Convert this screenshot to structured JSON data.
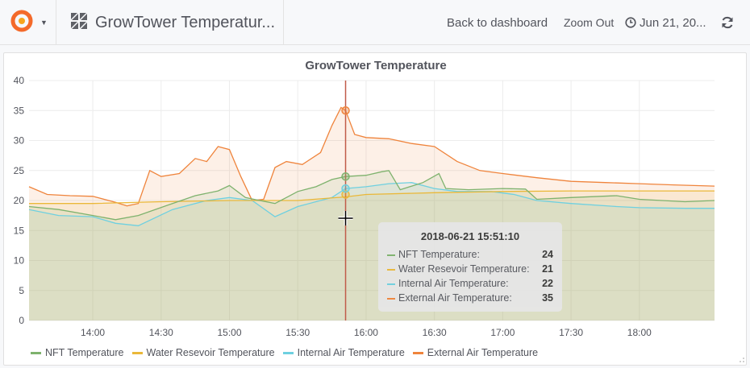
{
  "topbar": {
    "dashboard_title": "GrowTower Temperatur...",
    "back_label": "Back to dashboard",
    "zoom_label": "Zoom Out",
    "time_label": "Jun 21, 20..."
  },
  "panel": {
    "title": "GrowTower Temperature"
  },
  "colors": {
    "nft": "#7eb26d",
    "water": "#eab839",
    "internal": "#6ed0e0",
    "external": "#ef843c",
    "crosshair": "#c15c4a"
  },
  "tooltip": {
    "time": "2018-06-21 15:51:10",
    "rows": [
      {
        "label": "NFT Temperature:",
        "value": "24"
      },
      {
        "label": "Water Resevoir Temperature:",
        "value": "21"
      },
      {
        "label": "Internal Air Temperature:",
        "value": "22"
      },
      {
        "label": "External Air Temperature:",
        "value": "35"
      }
    ]
  },
  "legend": [
    "NFT Temperature",
    "Water Resevoir Temperature",
    "Internal Air Temperature",
    "External Air Temperature"
  ],
  "chart_data": {
    "type": "area",
    "title": "GrowTower Temperature",
    "ylim": [
      0,
      40
    ],
    "y_ticks": [
      "0",
      "5",
      "10",
      "15",
      "20",
      "25",
      "30",
      "35",
      "40"
    ],
    "xlim": [
      "13:32",
      "18:33"
    ],
    "x_ticks": [
      "14:00",
      "14:30",
      "15:00",
      "15:30",
      "16:00",
      "16:30",
      "17:00",
      "17:30",
      "18:00"
    ],
    "grid": true,
    "legend_position": "bottom",
    "crosshair_time": "15:51",
    "series": [
      {
        "name": "NFT Temperature",
        "x": [
          "13:32",
          "13:45",
          "14:00",
          "14:10",
          "14:20",
          "14:35",
          "14:45",
          "14:55",
          "15:00",
          "15:07",
          "15:12",
          "15:20",
          "15:25",
          "15:30",
          "15:38",
          "15:45",
          "15:51",
          "16:00",
          "16:07",
          "16:10",
          "16:15",
          "16:25",
          "16:32",
          "16:35",
          "16:45",
          "17:00",
          "17:10",
          "17:15",
          "17:30",
          "17:50",
          "18:00",
          "18:20",
          "18:33"
        ],
        "y": [
          19.0,
          18.5,
          17.5,
          16.8,
          17.5,
          19.5,
          20.8,
          21.6,
          22.5,
          20.5,
          20.1,
          19.5,
          20.5,
          21.5,
          22.3,
          23.5,
          24,
          24.2,
          24.8,
          25.0,
          21.8,
          23.0,
          24.5,
          22.0,
          21.8,
          22.0,
          21.9,
          20.2,
          20.5,
          20.8,
          20.2,
          19.8,
          20.0
        ]
      },
      {
        "name": "Water Resevoir Temperature",
        "x": [
          "13:32",
          "14:00",
          "14:30",
          "15:00",
          "15:30",
          "15:51",
          "16:00",
          "16:30",
          "17:00",
          "17:30",
          "18:00",
          "18:33"
        ],
        "y": [
          19.5,
          19.5,
          19.8,
          20.0,
          20.0,
          20.6,
          21.0,
          21.3,
          21.5,
          21.6,
          21.6,
          21.6
        ]
      },
      {
        "name": "Internal Air Temperature",
        "x": [
          "13:32",
          "13:45",
          "14:00",
          "14:10",
          "14:20",
          "14:35",
          "14:50",
          "15:00",
          "15:10",
          "15:20",
          "15:30",
          "15:45",
          "15:51",
          "16:00",
          "16:10",
          "16:20",
          "16:30",
          "16:40",
          "16:55",
          "17:05",
          "17:15",
          "17:30",
          "17:50",
          "18:00",
          "18:20",
          "18:33"
        ],
        "y": [
          18.5,
          17.5,
          17.3,
          16.2,
          15.8,
          18.5,
          20.0,
          20.5,
          20.0,
          17.3,
          19.0,
          20.5,
          22,
          22.3,
          22.8,
          23.0,
          22.0,
          21.5,
          21.5,
          21.0,
          20.0,
          19.5,
          19.0,
          18.8,
          18.7,
          18.7
        ]
      },
      {
        "name": "External Air Temperature",
        "x": [
          "13:32",
          "13:40",
          "13:50",
          "14:00",
          "14:10",
          "14:15",
          "14:20",
          "14:25",
          "14:30",
          "14:38",
          "14:45",
          "14:50",
          "14:55",
          "15:00",
          "15:05",
          "15:10",
          "15:15",
          "15:20",
          "15:25",
          "15:32",
          "15:40",
          "15:45",
          "15:49",
          "15:51",
          "15:55",
          "16:00",
          "16:10",
          "16:20",
          "16:30",
          "16:40",
          "16:50",
          "17:00",
          "17:15",
          "17:30",
          "17:45",
          "18:00",
          "18:15",
          "18:33"
        ],
        "y": [
          22.3,
          21.0,
          20.8,
          20.7,
          19.7,
          19.1,
          19.5,
          25.0,
          24.0,
          24.5,
          27.0,
          26.5,
          29.0,
          28.5,
          24.0,
          20.0,
          20.2,
          25.5,
          26.5,
          26.0,
          28.0,
          32.5,
          35.5,
          35,
          31.0,
          30.5,
          30.3,
          29.5,
          29.0,
          26.5,
          25.0,
          24.5,
          23.8,
          23.2,
          23.0,
          22.8,
          22.6,
          22.4
        ]
      }
    ]
  }
}
